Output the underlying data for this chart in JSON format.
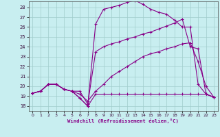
{
  "xlabel": "Windchill (Refroidissement éolien,°C)",
  "xlim": [
    -0.5,
    23.5
  ],
  "ylim": [
    17.5,
    28.6
  ],
  "xticks": [
    0,
    1,
    2,
    3,
    4,
    5,
    6,
    7,
    8,
    9,
    10,
    11,
    12,
    13,
    14,
    15,
    16,
    17,
    18,
    19,
    20,
    21,
    22,
    23
  ],
  "yticks": [
    18,
    19,
    20,
    21,
    22,
    23,
    24,
    25,
    26,
    27,
    28
  ],
  "bg_color": "#c8eef0",
  "line_color": "#880088",
  "grid_color": "#a0cccc",
  "lines": [
    {
      "x": [
        0,
        1,
        2,
        3,
        4,
        5,
        6,
        7,
        8,
        9,
        10,
        11,
        12,
        13,
        14,
        15,
        16,
        17,
        18,
        19,
        20,
        21,
        22,
        23
      ],
      "y": [
        19.3,
        19.5,
        20.2,
        20.2,
        19.7,
        19.5,
        18.8,
        18.0,
        19.2,
        19.2,
        19.2,
        19.2,
        19.2,
        19.2,
        19.2,
        19.2,
        19.2,
        19.2,
        19.2,
        19.2,
        19.2,
        19.2,
        19.2,
        18.9
      ]
    },
    {
      "x": [
        0,
        1,
        2,
        3,
        4,
        5,
        6,
        7,
        8,
        9,
        10,
        11,
        12,
        13,
        14,
        15,
        16,
        17,
        18,
        19,
        20,
        21,
        22,
        23
      ],
      "y": [
        19.3,
        19.5,
        20.2,
        20.2,
        19.7,
        19.5,
        18.8,
        18.0,
        26.3,
        27.8,
        28.0,
        28.2,
        28.5,
        28.7,
        28.3,
        27.8,
        27.5,
        27.3,
        26.7,
        26.0,
        26.0,
        20.2,
        19.2,
        18.9
      ]
    },
    {
      "x": [
        0,
        1,
        2,
        3,
        4,
        5,
        6,
        7,
        8,
        9,
        10,
        11,
        12,
        13,
        14,
        15,
        16,
        17,
        18,
        19,
        20,
        21,
        22,
        23
      ],
      "y": [
        19.3,
        19.5,
        20.2,
        20.2,
        19.7,
        19.5,
        19.5,
        18.2,
        23.5,
        24.0,
        24.3,
        24.5,
        24.8,
        25.0,
        25.3,
        25.5,
        25.8,
        26.1,
        26.4,
        26.8,
        24.0,
        23.8,
        19.2,
        18.9
      ]
    },
    {
      "x": [
        0,
        1,
        2,
        3,
        4,
        5,
        6,
        7,
        8,
        9,
        10,
        11,
        12,
        13,
        14,
        15,
        16,
        17,
        18,
        19,
        20,
        21,
        22,
        23
      ],
      "y": [
        19.3,
        19.5,
        20.2,
        20.2,
        19.7,
        19.5,
        19.2,
        18.5,
        19.5,
        20.2,
        21.0,
        21.5,
        22.0,
        22.5,
        23.0,
        23.3,
        23.5,
        23.8,
        24.0,
        24.3,
        24.4,
        22.5,
        20.0,
        18.9
      ]
    }
  ]
}
